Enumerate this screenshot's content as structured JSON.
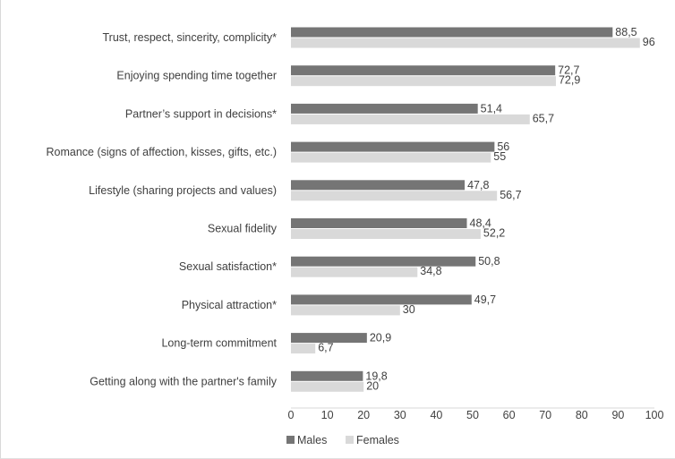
{
  "chart_data": {
    "type": "bar",
    "orientation": "horizontal",
    "categories": [
      "Trust, respect, sincerity, complicity*",
      "Enjoying spending time together",
      "Partner’s support in decisions*",
      "Romance (signs of affection, kisses, gifts, etc.)",
      "Lifestyle (sharing projects and values)",
      "Sexual fidelity",
      "Sexual satisfaction*",
      "Physical attraction*",
      "Long-term commitment",
      "Getting along with the partner's family"
    ],
    "series": [
      {
        "name": "Males",
        "color": "#757575",
        "values": [
          88.5,
          72.7,
          51.4,
          56,
          47.8,
          48.4,
          50.8,
          49.7,
          20.9,
          19.8
        ],
        "labels": [
          "88,5",
          "72,7",
          "51,4",
          "56",
          "47,8",
          "48,4",
          "50,8",
          "49,7",
          "20,9",
          "19,8"
        ]
      },
      {
        "name": "Females",
        "color": "#d9d9d9",
        "values": [
          96,
          72.9,
          65.7,
          55,
          56.7,
          52.2,
          34.8,
          30,
          6.7,
          20
        ],
        "labels": [
          "96",
          "72,9",
          "65,7",
          "55",
          "56,7",
          "52,2",
          "34,8",
          "30",
          "6,7",
          "20"
        ]
      }
    ],
    "xlim": [
      0,
      100
    ],
    "xticks": [
      "0",
      "10",
      "20",
      "30",
      "40",
      "50",
      "60",
      "70",
      "80",
      "90",
      "100"
    ],
    "grid": false,
    "legend": "bottom"
  }
}
